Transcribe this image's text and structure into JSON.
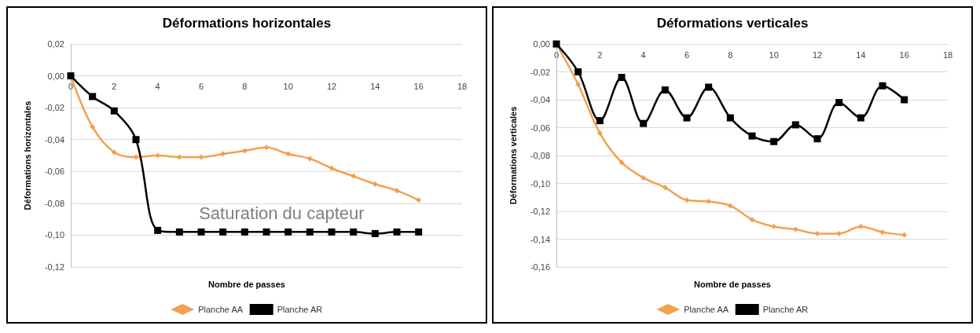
{
  "chart_data": [
    {
      "type": "line",
      "title": "Déformations horizontales",
      "xlabel": "Nombre de passes",
      "ylabel": "Déformations horizontales",
      "x": [
        0,
        1,
        2,
        3,
        4,
        5,
        6,
        7,
        8,
        9,
        10,
        11,
        12,
        13,
        14,
        15,
        16
      ],
      "series": [
        {
          "name": "Planche AA",
          "color": "#f4a04e",
          "marker": "diamond",
          "values": [
            0,
            -0.032,
            -0.048,
            -0.051,
            -0.05,
            -0.051,
            -0.051,
            -0.049,
            -0.047,
            -0.045,
            -0.049,
            -0.052,
            -0.058,
            -0.063,
            -0.068,
            -0.072,
            -0.078
          ]
        },
        {
          "name": "Planche AR",
          "color": "#000000",
          "marker": "square",
          "values": [
            0,
            -0.013,
            -0.022,
            -0.04,
            -0.097,
            -0.098,
            -0.098,
            -0.098,
            -0.098,
            -0.098,
            -0.098,
            -0.098,
            -0.098,
            -0.098,
            -0.099,
            -0.098,
            -0.098
          ]
        }
      ],
      "xlim": [
        0,
        18
      ],
      "xticks": [
        0,
        2,
        4,
        6,
        8,
        10,
        12,
        14,
        16,
        18
      ],
      "ylim": [
        -0.12,
        0.02
      ],
      "yticks": [
        {
          "value": -0.12,
          "label": "-0,12"
        },
        {
          "value": -0.1,
          "label": "-0,10"
        },
        {
          "value": -0.08,
          "label": "-0,08"
        },
        {
          "value": -0.06,
          "label": "-0,06"
        },
        {
          "value": -0.04,
          "label": "-0,04"
        },
        {
          "value": -0.02,
          "label": "-0,02"
        },
        {
          "value": 0,
          "label": "0,00"
        },
        {
          "value": 0.02,
          "label": "0,02"
        }
      ],
      "annotations": [
        "Saturation du capteur"
      ],
      "grid": "y",
      "legend": "bottom",
      "line_style": "solid"
    },
    {
      "type": "line",
      "title": "Déformations verticales",
      "xlabel": "Nombre de passes",
      "ylabel": "Déformations verticales",
      "x": [
        0,
        1,
        2,
        3,
        4,
        5,
        6,
        7,
        8,
        9,
        10,
        11,
        12,
        13,
        14,
        15,
        16
      ],
      "series": [
        {
          "name": "Planche AA",
          "color": "#f4a04e",
          "marker": "diamond",
          "values": [
            0,
            -0.029,
            -0.064,
            -0.085,
            -0.096,
            -0.103,
            -0.112,
            -0.113,
            -0.116,
            -0.126,
            -0.131,
            -0.133,
            -0.136,
            -0.136,
            -0.131,
            -0.135,
            -0.137
          ]
        },
        {
          "name": "Planche AR",
          "color": "#000000",
          "marker": "square",
          "values": [
            0,
            -0.02,
            -0.055,
            -0.024,
            -0.057,
            -0.033,
            -0.053,
            -0.031,
            -0.053,
            -0.066,
            -0.07,
            -0.058,
            -0.068,
            -0.042,
            -0.053,
            -0.03,
            -0.04
          ]
        }
      ],
      "xlim": [
        0,
        18
      ],
      "xticks": [
        0,
        2,
        4,
        6,
        8,
        10,
        12,
        14,
        16,
        18
      ],
      "ylim": [
        -0.16,
        0
      ],
      "yticks": [
        {
          "value": -0.16,
          "label": "-0,16"
        },
        {
          "value": -0.14,
          "label": "-0,14"
        },
        {
          "value": -0.12,
          "label": "-0,12"
        },
        {
          "value": -0.1,
          "label": "-0,10"
        },
        {
          "value": -0.08,
          "label": "-0,08"
        },
        {
          "value": -0.06,
          "label": "-0,06"
        },
        {
          "value": -0.04,
          "label": "-0,04"
        },
        {
          "value": -0.02,
          "label": "-0,02"
        },
        {
          "value": 0,
          "label": "0,00"
        }
      ],
      "grid": "y",
      "legend": "bottom",
      "line_style": "solid"
    }
  ]
}
